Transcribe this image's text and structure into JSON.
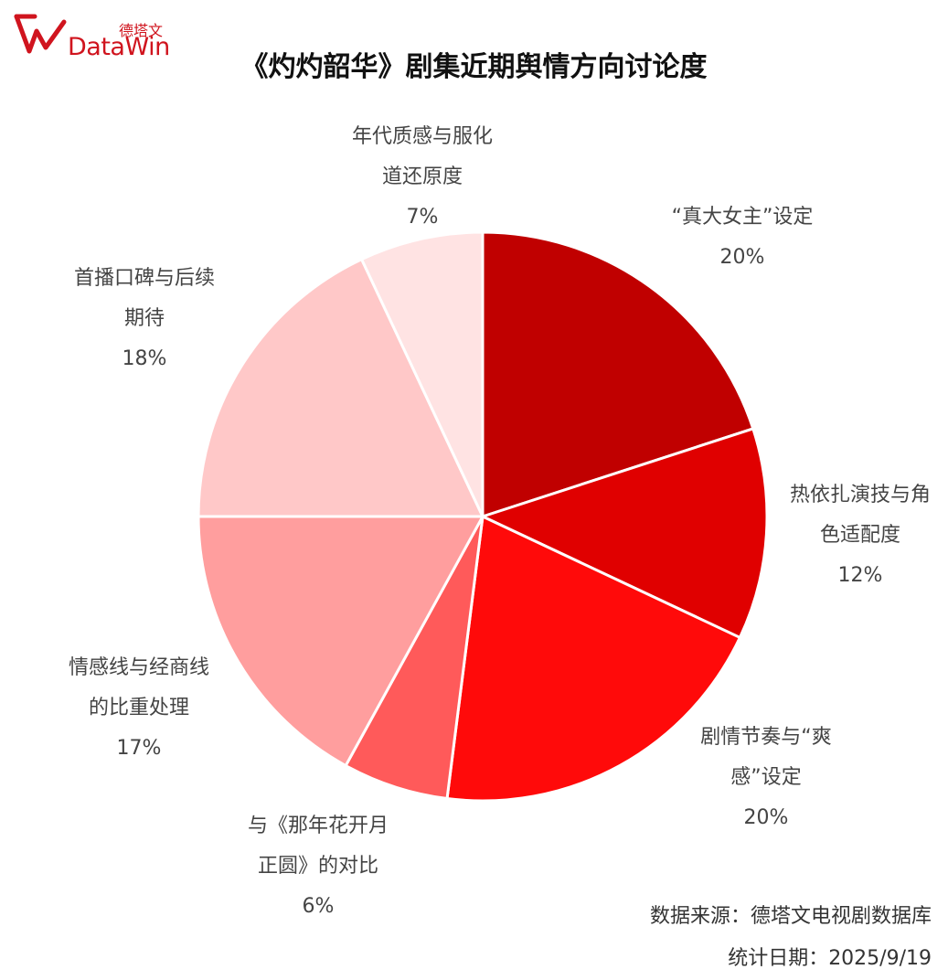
{
  "header": {
    "logo_cn": "德塔文",
    "logo_en": "DataWin",
    "title": "《灼灼韶华》剧集近期舆情方向讨论度"
  },
  "chart_data": {
    "type": "pie",
    "title": "《灼灼韶华》剧集近期舆情方向讨论度",
    "start_angle": "12 o'clock",
    "direction": "clockwise",
    "slices": [
      {
        "label_lines": [
          "“真大女主”设定"
        ],
        "value": 20,
        "value_label": "20%",
        "color": "#c00000"
      },
      {
        "label_lines": [
          "热依扎演技与角",
          "色适配度"
        ],
        "value": 12,
        "value_label": "12%",
        "color": "#e00000"
      },
      {
        "label_lines": [
          "剧情节奏与“爽",
          "感”设定"
        ],
        "value": 20,
        "value_label": "20%",
        "color": "#ff0a0a"
      },
      {
        "label_lines": [
          "与《那年花开月",
          "正圆》的对比"
        ],
        "value": 6,
        "value_label": "6%",
        "color": "#ff5a5a"
      },
      {
        "label_lines": [
          "情感线与经商线",
          "的比重处理"
        ],
        "value": 17,
        "value_label": "17%",
        "color": "#ff9e9e"
      },
      {
        "label_lines": [
          "首播口碑与后续",
          "期待"
        ],
        "value": 18,
        "value_label": "18%",
        "color": "#ffc8c8"
      },
      {
        "label_lines": [
          "年代质感与服化",
          "道还原度"
        ],
        "value": 7,
        "value_label": "7%",
        "color": "#ffe3e3"
      }
    ]
  },
  "footer": {
    "source": "数据来源：德塔文电视剧数据库",
    "date": "统计日期：2025/9/19"
  }
}
